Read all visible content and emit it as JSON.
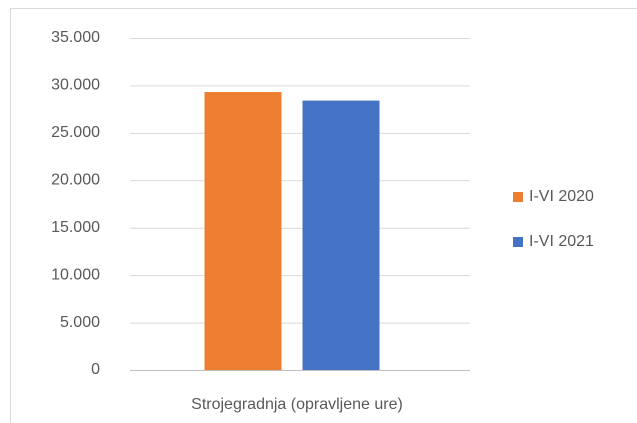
{
  "chart_data": {
    "type": "bar",
    "categories": [
      "Strojegradnja (opravljene ure)"
    ],
    "series": [
      {
        "name": "I-VI 2020",
        "color": "#ed7d31",
        "values": [
          29300
        ]
      },
      {
        "name": "I-VI 2021",
        "color": "#4472c4",
        "values": [
          28400
        ]
      }
    ],
    "ylim": [
      0,
      35000
    ],
    "yticks": [
      0,
      {
        "value": 5000,
        "label": "5.000"
      },
      {
        "value": 10000,
        "label": "10.000"
      },
      {
        "value": 15000,
        "label": "15.000"
      },
      {
        "value": 20000,
        "label": "20.000"
      },
      {
        "value": 25000,
        "label": "25.000"
      },
      {
        "value": 30000,
        "label": "30.000"
      },
      {
        "value": 35000,
        "label": "35.000"
      }
    ],
    "grid": true,
    "legend": "right"
  }
}
